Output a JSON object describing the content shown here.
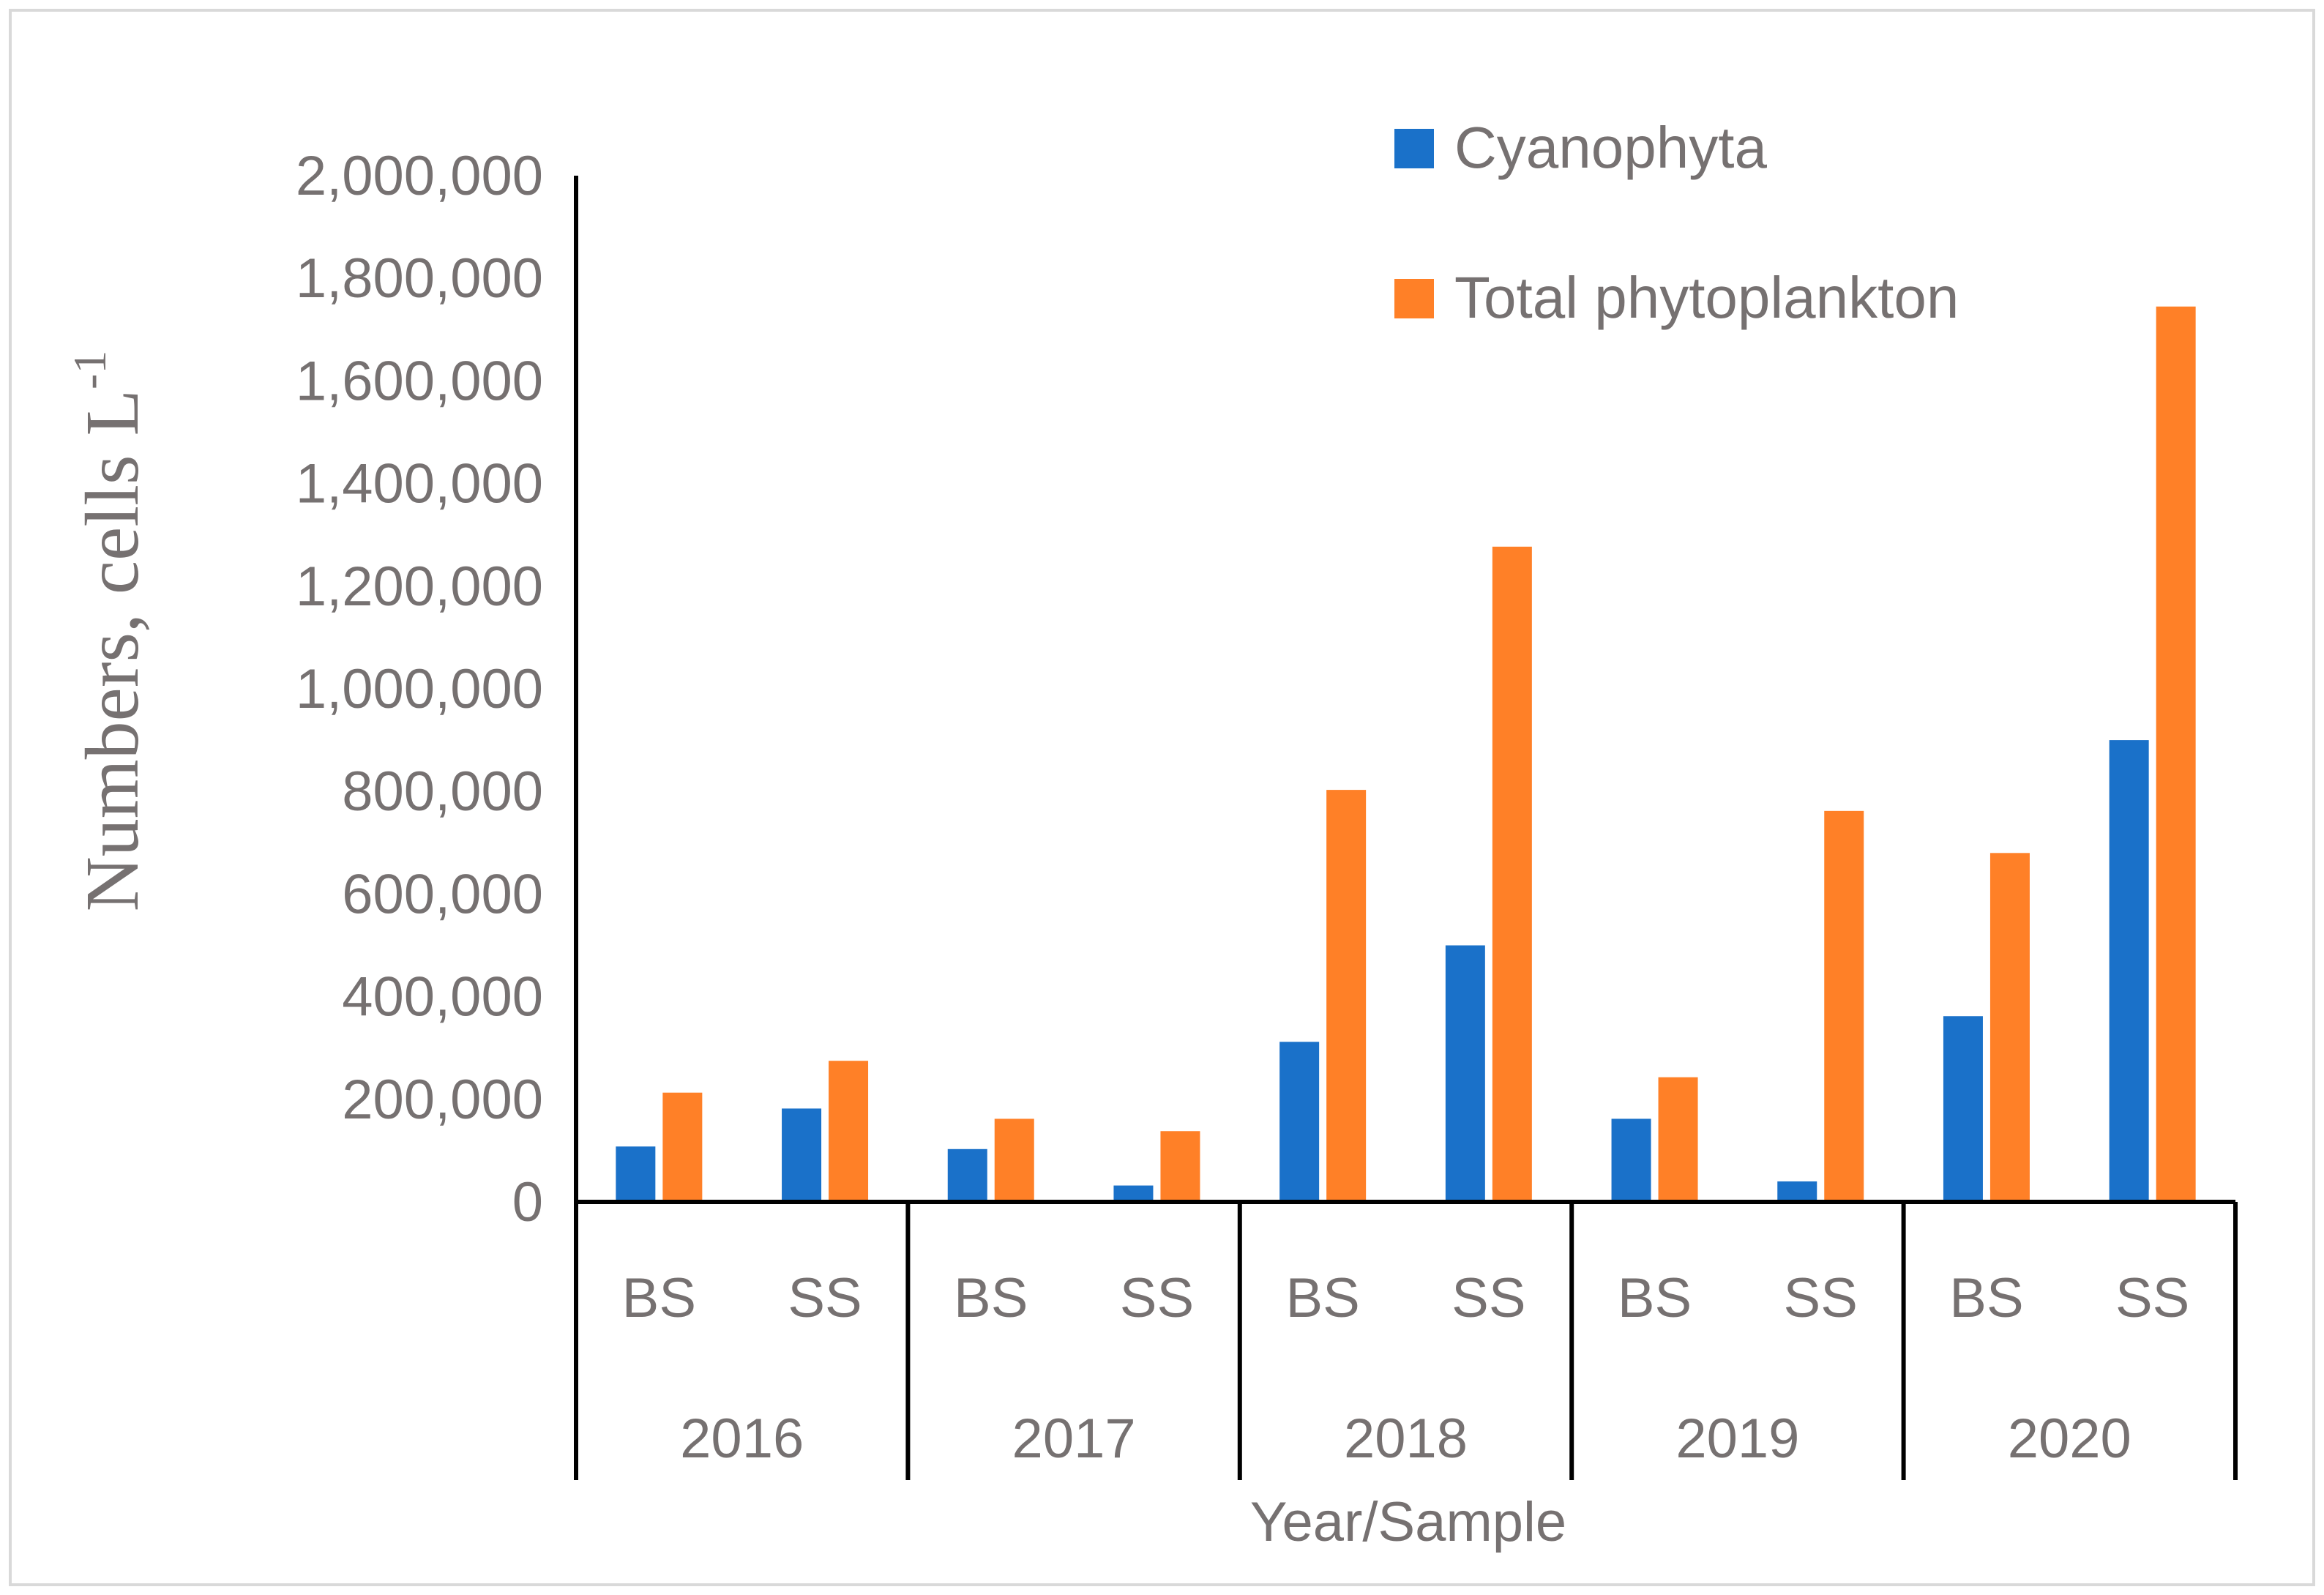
{
  "chart_data": {
    "type": "bar",
    "title": "",
    "xlabel": "Year/Sample",
    "ylabel": "Numbers, cells L",
    "ylabel_superscript": "-1",
    "ylim": [
      0,
      2000000
    ],
    "yticks": [
      0,
      200000,
      400000,
      600000,
      800000,
      1000000,
      1200000,
      1400000,
      1600000,
      1800000,
      2000000
    ],
    "ytick_labels": [
      "0",
      "200,000",
      "400,000",
      "600,000",
      "800,000",
      "1,000,000",
      "1,200,000",
      "1,400,000",
      "1,600,000",
      "1,800,000",
      "2,000,000"
    ],
    "groups": [
      "2016",
      "2017",
      "2018",
      "2019",
      "2020"
    ],
    "samples": [
      "BS",
      "SS"
    ],
    "categories": [
      "2016 BS",
      "2016 SS",
      "2017 BS",
      "2017 SS",
      "2018 BS",
      "2018 SS",
      "2019 BS",
      "2019 SS",
      "2020 BS",
      "2020 SS"
    ],
    "series": [
      {
        "name": "Cyanophyta",
        "color": "#1a71c9",
        "values": [
          108000,
          182000,
          103000,
          32000,
          312000,
          500000,
          162000,
          40000,
          362000,
          900000
        ]
      },
      {
        "name": "Total phytoplankton",
        "color": "#ff8027",
        "values": [
          213000,
          275000,
          162000,
          138000,
          803000,
          1277000,
          243000,
          762000,
          680000,
          1745000
        ]
      }
    ],
    "legend_position": "top-right"
  }
}
